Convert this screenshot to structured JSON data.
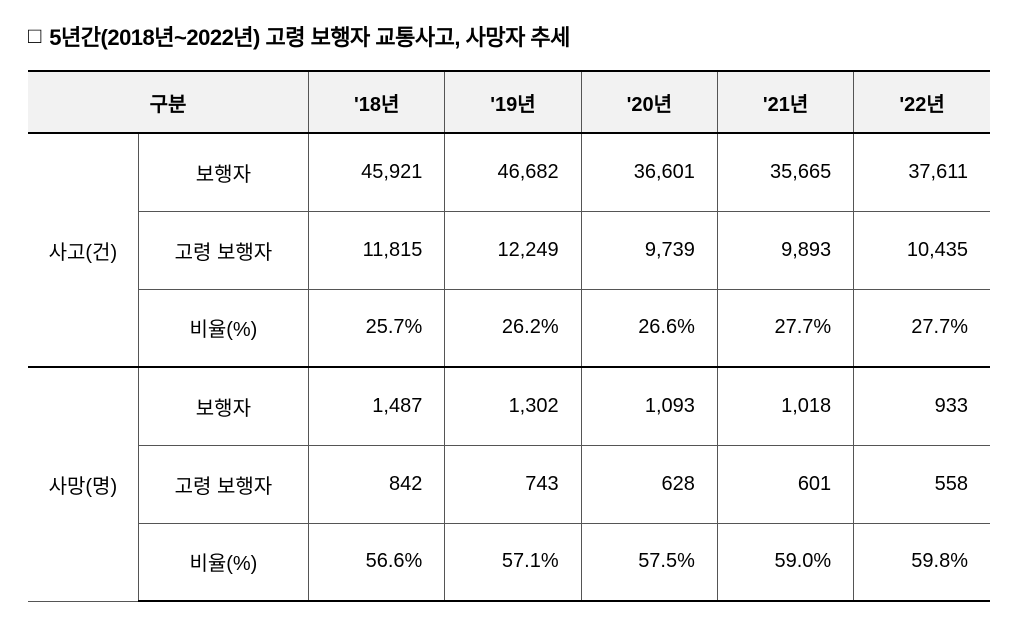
{
  "title_bullet": "□",
  "title": "5년간(2018년~2022년) 고령 보행자 교통사고, 사망자 추세",
  "columns": {
    "group_header": "구분",
    "years": [
      "'18년",
      "'19년",
      "'20년",
      "'21년",
      "'22년"
    ]
  },
  "groups": [
    {
      "label": "사고(건)",
      "rows": [
        {
          "label": "보행자",
          "values": [
            "45,921",
            "46,682",
            "36,601",
            "35,665",
            "37,611"
          ]
        },
        {
          "label": "고령 보행자",
          "values": [
            "11,815",
            "12,249",
            "9,739",
            "9,893",
            "10,435"
          ]
        },
        {
          "label": "비율(%)",
          "values": [
            "25.7%",
            "26.2%",
            "26.6%",
            "27.7%",
            "27.7%"
          ]
        }
      ]
    },
    {
      "label": "사망(명)",
      "rows": [
        {
          "label": "보행자",
          "values": [
            "1,487",
            "1,302",
            "1,093",
            "1,018",
            "933"
          ]
        },
        {
          "label": "고령 보행자",
          "values": [
            "842",
            "743",
            "628",
            "601",
            "558"
          ]
        },
        {
          "label": "비율(%)",
          "values": [
            "56.6%",
            "57.1%",
            "57.5%",
            "59.0%",
            "59.8%"
          ]
        }
      ]
    }
  ],
  "style": {
    "header_bg": "#f2f2f2",
    "border_color": "#555555",
    "outer_rule_color": "#000000",
    "text_color": "#000000",
    "font_size_title": 22,
    "font_size_cell": 20
  }
}
